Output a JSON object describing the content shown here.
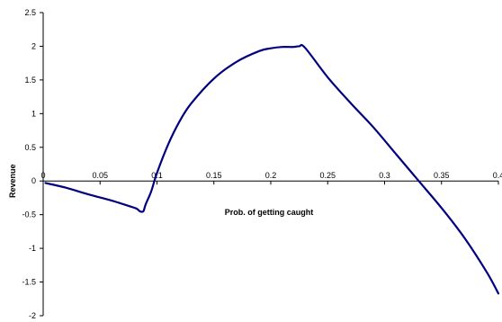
{
  "chart_data": {
    "type": "line",
    "title": "",
    "xlabel": "Prob. of getting caught",
    "ylabel": "Revenue",
    "xlim": [
      0,
      0.4
    ],
    "ylim": [
      -2,
      2.5
    ],
    "x_ticks": [
      0,
      0.05,
      0.1,
      0.15,
      0.2,
      0.25,
      0.3,
      0.35,
      0.4
    ],
    "x_tick_labels": [
      "0",
      "0.05",
      "0.1",
      "0.15",
      "0.2",
      "0.25",
      "0.3",
      "0.35",
      "0.4"
    ],
    "y_ticks": [
      -2,
      -1.5,
      -1,
      -0.5,
      0,
      0.5,
      1,
      1.5,
      2,
      2.5
    ],
    "y_tick_labels": [
      "-2",
      "-1.5",
      "-1",
      "-0.5",
      "0",
      "0.5",
      "1",
      "1.5",
      "2",
      "2.5"
    ],
    "grid": false,
    "legend": "none",
    "series": [
      {
        "color": "#000080",
        "x": [
          0.002,
          0.02,
          0.04,
          0.06,
          0.075,
          0.082,
          0.085,
          0.088,
          0.09,
          0.095,
          0.1,
          0.11,
          0.12,
          0.13,
          0.15,
          0.17,
          0.19,
          0.2,
          0.21,
          0.22,
          0.225,
          0.23,
          0.25,
          0.27,
          0.29,
          0.31,
          0.33,
          0.35,
          0.37,
          0.39,
          0.4
        ],
        "y": [
          -0.03,
          -0.1,
          -0.2,
          -0.29,
          -0.37,
          -0.41,
          -0.45,
          -0.45,
          -0.35,
          -0.15,
          0.12,
          0.55,
          0.89,
          1.15,
          1.52,
          1.77,
          1.93,
          1.97,
          1.99,
          1.99,
          2.0,
          1.98,
          1.54,
          1.16,
          0.8,
          0.4,
          0.0,
          -0.4,
          -0.84,
          -1.36,
          -1.67
        ]
      }
    ]
  }
}
